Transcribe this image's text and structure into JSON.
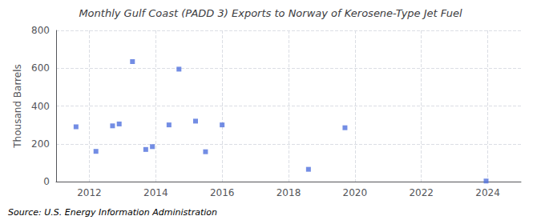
{
  "chart_data": {
    "type": "scatter",
    "title": "Monthly Gulf Coast (PADD 3) Exports to Norway of Kerosene-Type Jet Fuel",
    "ylabel": "Thousand Barrels",
    "annotations": [
      "Source: U.S. Energy Information Administration"
    ],
    "x": [
      2011.6,
      2012.2,
      2012.7,
      2012.9,
      2013.3,
      2013.7,
      2013.9,
      2014.4,
      2014.7,
      2015.2,
      2015.5,
      2016.0,
      2018.6,
      2019.7,
      2023.95
    ],
    "values": [
      290,
      160,
      295,
      305,
      635,
      170,
      185,
      300,
      595,
      320,
      158,
      300,
      65,
      285,
      3
    ],
    "marker": "square",
    "xlim": [
      2011.0,
      2025.0
    ],
    "xticks": [
      2012,
      2014,
      2016,
      2018,
      2020,
      2022,
      2024
    ],
    "ylim": [
      0,
      800
    ],
    "yticks": [
      0,
      200,
      400,
      600,
      800
    ],
    "grid": true
  }
}
